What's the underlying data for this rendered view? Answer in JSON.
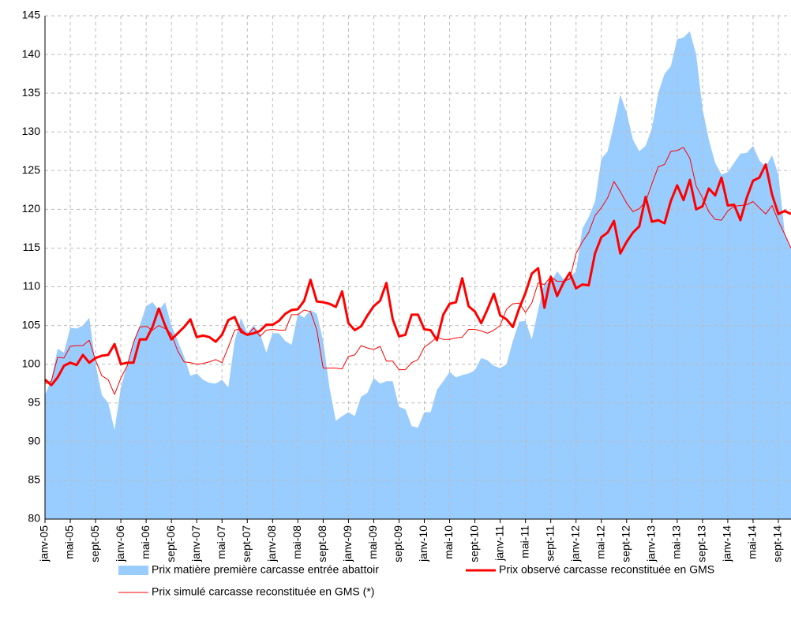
{
  "chart_data": {
    "type": "line",
    "categories": [
      "janv-05",
      null,
      null,
      null,
      "mai-05",
      null,
      null,
      null,
      "sept-05",
      null,
      null,
      null,
      "janv-06",
      null,
      null,
      null,
      "mai-06",
      null,
      null,
      null,
      "sept-06",
      null,
      null,
      null,
      "janv-07",
      null,
      null,
      null,
      "mai-07",
      null,
      null,
      null,
      "sept-07",
      null,
      null,
      null,
      "janv-08",
      null,
      null,
      null,
      "mai-08",
      null,
      null,
      null,
      "sept-08",
      null,
      null,
      null,
      "janv-09",
      null,
      null,
      null,
      "mai-09",
      null,
      null,
      null,
      "sept-09",
      null,
      null,
      null,
      "janv-10",
      null,
      null,
      null,
      "mai-10",
      null,
      null,
      null,
      "sept-10",
      null,
      null,
      null,
      "janv-11",
      null,
      null,
      null,
      "mai-11",
      null,
      null,
      null,
      "sept-11",
      null,
      null,
      null,
      "janv-12",
      null,
      null,
      null,
      "mai-12",
      null,
      null,
      null,
      "sept-12",
      null,
      null,
      null,
      "janv-13",
      null,
      null,
      null,
      "mai-13",
      null,
      null,
      null,
      "sept-13",
      null,
      null,
      null,
      "janv-14",
      null,
      null,
      null,
      "mai-14",
      null,
      null,
      null,
      "sept-14",
      null,
      null
    ],
    "series": [
      {
        "name": "Prix matière première carcasse entrée abattoir",
        "type": "area",
        "color": "#99ccff",
        "values": [
          96,
          98,
          102,
          101.5,
          104.7,
          104.6,
          105,
          106,
          100,
          96,
          95,
          91.5,
          97,
          100,
          103,
          105,
          107.5,
          108,
          107,
          108,
          105,
          103,
          101,
          98.5,
          98.8,
          98,
          97.6,
          97.5,
          98,
          97,
          103,
          106,
          104,
          105,
          104,
          101.5,
          104,
          104,
          103,
          102.5,
          106.5,
          106,
          107,
          106.5,
          103,
          97,
          92.7,
          93.3,
          93.8,
          93.3,
          95.8,
          96.3,
          98.2,
          97.5,
          97.8,
          97.8,
          94.5,
          94.2,
          92,
          91.8,
          93.8,
          93.8,
          96.7,
          97.8,
          99,
          98.3,
          98.6,
          98.8,
          99.2,
          100.8,
          100.5,
          99.8,
          99.5,
          100,
          103,
          105.5,
          105.6,
          103.2,
          107,
          110.5,
          110.5,
          112,
          111,
          111.2,
          112,
          117.5,
          119,
          121,
          126.5,
          127.5,
          131,
          134.8,
          132.5,
          129,
          127.5,
          128.2,
          130.5,
          135,
          137.5,
          138.5,
          142,
          142.2,
          143,
          140,
          133,
          129,
          126,
          124.5,
          124.8,
          126,
          127.2,
          127.3,
          128.2,
          126.3,
          125.5,
          127,
          124.5,
          117,
          115
        ]
      },
      {
        "name": "Prix observé carcasse reconstituée en GMS",
        "type": "line",
        "width": 3,
        "color": "#ff0000",
        "values": [
          98,
          97.3,
          98.3,
          99.8,
          100.2,
          99.9,
          101.2,
          100.2,
          100.8,
          101.1,
          101.2,
          102.6,
          100,
          100.2,
          100.2,
          103.2,
          103.2,
          104.8,
          107.2,
          105,
          103.2,
          104,
          104.8,
          105.8,
          103.5,
          103.7,
          103.5,
          102.9,
          103.8,
          105.7,
          106.1,
          104.2,
          103.8,
          104,
          104.3,
          105.1,
          105.1,
          105.6,
          106.5,
          107,
          107.1,
          108.2,
          110.9,
          108.1,
          108,
          107.8,
          107.4,
          109.4,
          105.3,
          104.4,
          104.9,
          106.3,
          107.5,
          108.2,
          110.5,
          105.8,
          103.6,
          103.8,
          106.4,
          106.4,
          104.5,
          104.4,
          103.1,
          106.4,
          107.8,
          108,
          111.1,
          107.5,
          106.8,
          105.3,
          107.1,
          109.1,
          106.3,
          105.8,
          104.8,
          107.2,
          109.2,
          111.7,
          112.4,
          107.3,
          111.3,
          108.8,
          110.5,
          111.8,
          109.8,
          110.3,
          110.2,
          114.3,
          116.4,
          117,
          118.5,
          114.3,
          115.8,
          117,
          117.8,
          121.6,
          118.4,
          118.6,
          118.2,
          121.1,
          123.1,
          121.2,
          123.8,
          120,
          120.4,
          122.7,
          121.8,
          124.1,
          120.5,
          120.6,
          118.6,
          121.5,
          123.7,
          124.1,
          125.8,
          121.9,
          119.4,
          119.8,
          119.4
        ]
      },
      {
        "name": "Prix simulé carcasse reconstituée en GMS (*)",
        "type": "line",
        "width": 1,
        "color": "#ff0000",
        "values": [
          97.5,
          97.8,
          100.9,
          100.8,
          102.3,
          102.4,
          102.4,
          103.1,
          100.5,
          98.5,
          98,
          96.1,
          98.2,
          99.8,
          102.8,
          104.8,
          104.9,
          104.4,
          105,
          104.6,
          103.9,
          101.7,
          100.3,
          100.2,
          100,
          100.1,
          100.3,
          100.6,
          100.2,
          102.2,
          104.4,
          104.6,
          103.7,
          104.7,
          103.6,
          104.4,
          104.5,
          104.4,
          104.4,
          106.4,
          106.4,
          107,
          106.8,
          104.4,
          99.5,
          99.5,
          99.5,
          99.4,
          101,
          101.2,
          102.4,
          102.1,
          101.9,
          102.3,
          100.4,
          100.4,
          99.3,
          99.3,
          100.2,
          100.6,
          102.2,
          102.8,
          103.5,
          103.2,
          103.2,
          103.4,
          103.5,
          104.5,
          104.5,
          104.3,
          104,
          104.4,
          105,
          107.1,
          107.8,
          107.9,
          106.7,
          107.9,
          110.5,
          110.3,
          111.3,
          110.7,
          110.7,
          111,
          114.3,
          115.8,
          117,
          119.2,
          120.2,
          121.5,
          123.6,
          122.3,
          120.8,
          119.7,
          120.1,
          121,
          123.3,
          125.5,
          125.8,
          127.5,
          127.6,
          128,
          126.6,
          123,
          121.5,
          119.7,
          118.7,
          118.6,
          119.8,
          120.4,
          120.5,
          120.6,
          121,
          120.2,
          119.4,
          120.5,
          118.5,
          116.8,
          115
        ]
      }
    ],
    "ylim": [
      80,
      145
    ],
    "yticks": [
      80,
      85,
      90,
      95,
      100,
      105,
      110,
      115,
      120,
      125,
      130,
      135,
      140,
      145
    ],
    "grid": true,
    "legend": "bottom"
  }
}
